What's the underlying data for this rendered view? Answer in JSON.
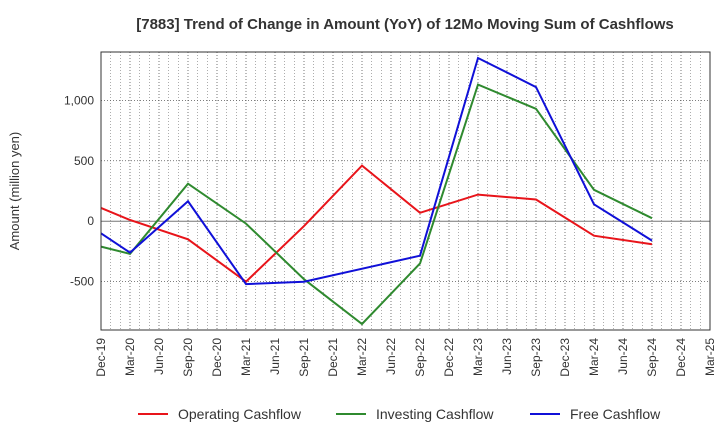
{
  "chart_data": {
    "type": "line",
    "title": "[7883]  Trend of Change in Amount (YoY) of 12Mo Moving Sum of Cashflows",
    "xlabel": "",
    "ylabel": "Amount (million yen)",
    "ylim": [
      -900,
      1400
    ],
    "yticks": [
      -500,
      0,
      500,
      1000
    ],
    "ytick_labels": [
      "-500",
      "0",
      "500",
      "1,000"
    ],
    "categories": [
      "Dec-19",
      "Mar-20",
      "Jun-20",
      "Sep-20",
      "Dec-20",
      "Mar-21",
      "Jun-21",
      "Sep-21",
      "Dec-21",
      "Mar-22",
      "Jun-22",
      "Sep-22",
      "Dec-22",
      "Mar-23",
      "Jun-23",
      "Sep-23",
      "Dec-23",
      "Mar-24",
      "Jun-24",
      "Sep-24",
      "Dec-24",
      "Mar-25"
    ],
    "grid": true,
    "legend_position": "bottom",
    "series": [
      {
        "name": "Operating Cashflow",
        "color": "#e8141a",
        "points": [
          {
            "x": 0,
            "y": 110
          },
          {
            "x": 1,
            "y": 10
          },
          {
            "x": 3,
            "y": -150
          },
          {
            "x": 5,
            "y": -500
          },
          {
            "x": 7,
            "y": -40
          },
          {
            "x": 9,
            "y": 460
          },
          {
            "x": 11,
            "y": 70
          },
          {
            "x": 13,
            "y": 220
          },
          {
            "x": 15,
            "y": 180
          },
          {
            "x": 17,
            "y": -120
          },
          {
            "x": 19,
            "y": -190
          }
        ]
      },
      {
        "name": "Investing Cashflow",
        "color": "#2f8a2f",
        "points": [
          {
            "x": 0,
            "y": -210
          },
          {
            "x": 1,
            "y": -270
          },
          {
            "x": 3,
            "y": 310
          },
          {
            "x": 5,
            "y": -20
          },
          {
            "x": 7,
            "y": -480
          },
          {
            "x": 9,
            "y": -850
          },
          {
            "x": 11,
            "y": -350
          },
          {
            "x": 13,
            "y": 1130
          },
          {
            "x": 15,
            "y": 930
          },
          {
            "x": 17,
            "y": 260
          },
          {
            "x": 19,
            "y": 25
          }
        ]
      },
      {
        "name": "Free Cashflow",
        "color": "#1010d8",
        "points": [
          {
            "x": 0,
            "y": -100
          },
          {
            "x": 1,
            "y": -260
          },
          {
            "x": 3,
            "y": 165
          },
          {
            "x": 5,
            "y": -520
          },
          {
            "x": 7,
            "y": -500
          },
          {
            "x": 11,
            "y": -285
          },
          {
            "x": 13,
            "y": 1350
          },
          {
            "x": 15,
            "y": 1110
          },
          {
            "x": 17,
            "y": 140
          },
          {
            "x": 19,
            "y": -160
          }
        ]
      }
    ]
  }
}
